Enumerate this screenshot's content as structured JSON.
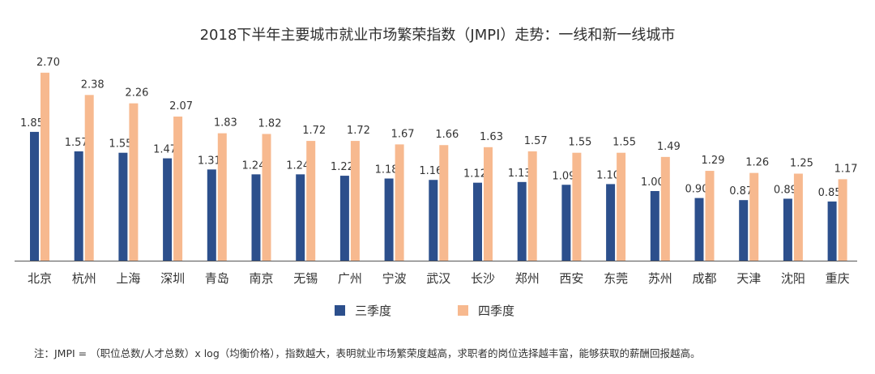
{
  "title": "2018下半年主要城市就业市场繁荣指数（JMPI）走势：一线和新一线城市",
  "colors": {
    "q3": "#2c4f8c",
    "q4": "#f7b98f",
    "axis": "#555555"
  },
  "chart_data": {
    "type": "bar",
    "title": "2018下半年主要城市就业市场繁荣指数（JMPI）走势：一线和新一线城市",
    "xlabel": "",
    "ylabel": "",
    "ylim": [
      0,
      2.8
    ],
    "grid": false,
    "legend_position": "bottom-center",
    "categories": [
      "北京",
      "杭州",
      "上海",
      "深圳",
      "青岛",
      "南京",
      "无锡",
      "广州",
      "宁波",
      "武汉",
      "长沙",
      "郑州",
      "西安",
      "东莞",
      "苏州",
      "成都",
      "天津",
      "沈阳",
      "重庆"
    ],
    "series": [
      {
        "name": "三季度",
        "values": [
          1.85,
          1.57,
          1.55,
          1.47,
          1.31,
          1.24,
          1.24,
          1.22,
          1.18,
          1.16,
          1.12,
          1.13,
          1.09,
          1.1,
          1.0,
          0.9,
          0.87,
          0.89,
          0.85
        ]
      },
      {
        "name": "四季度",
        "values": [
          2.7,
          2.38,
          2.26,
          2.07,
          1.83,
          1.82,
          1.72,
          1.72,
          1.67,
          1.66,
          1.63,
          1.57,
          1.55,
          1.55,
          1.49,
          1.29,
          1.26,
          1.25,
          1.17
        ]
      }
    ]
  },
  "legend": {
    "q3_label": "三季度",
    "q4_label": "四季度"
  },
  "note": "注：JMPI = （职位总数/人才总数）x log（均衡价格），指数越大，表明就业市场繁荣度越高，求职者的岗位选择越丰富，能够获取的薪酬回报越高。"
}
